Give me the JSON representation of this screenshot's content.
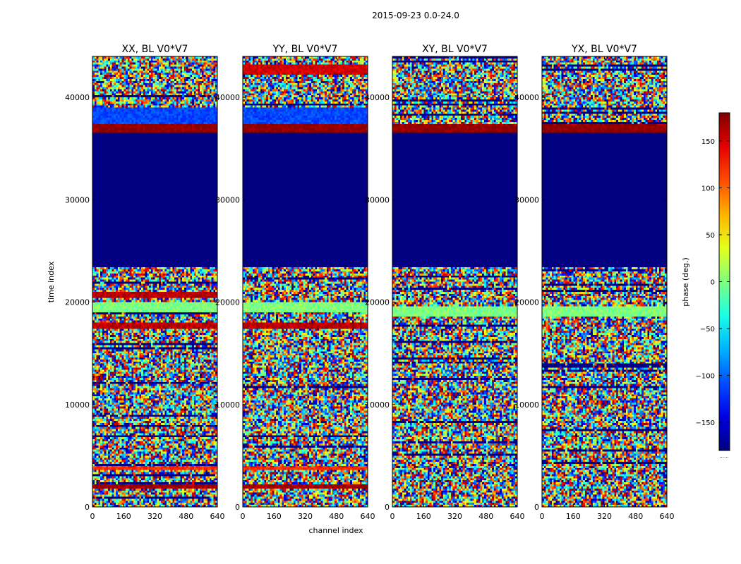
{
  "figure": {
    "suptitle": "2015-09-23 0.0-24.0",
    "colorbar_label": "phase (deg.)",
    "colorbar_footer": "......"
  },
  "chart_data": {
    "type": "heatmap",
    "xlabel": "channel index",
    "ylabel": "time index",
    "xlim": [
      0,
      640
    ],
    "ylim": [
      0,
      44000
    ],
    "xticks": [
      0,
      160,
      320,
      480,
      640
    ],
    "yticks": [
      0,
      10000,
      20000,
      30000,
      40000
    ],
    "colorbar": {
      "range": [
        -180,
        180
      ],
      "ticks": [
        -150,
        -100,
        -50,
        0,
        50,
        100,
        150
      ],
      "colormap": "jet"
    },
    "panels": [
      {
        "title": "XX, BL V0*V7",
        "flagged_block": [
          23500,
          36500
        ],
        "bands": [
          {
            "y": [
              36500,
              37400
            ],
            "phase": 175
          },
          {
            "y": [
              37400,
              39000
            ],
            "phase": -110
          },
          {
            "y": [
              20400,
              21000
            ],
            "phase": 160
          },
          {
            "y": [
              17500,
              17900
            ],
            "phase": 160
          },
          {
            "y": [
              3600,
              3900
            ],
            "phase": 120
          },
          {
            "y": [
              1800,
              2100
            ],
            "phase": 170
          },
          {
            "y": [
              19000,
              19900
            ],
            "phase": 0
          }
        ]
      },
      {
        "title": "YY, BL V0*V7",
        "flagged_block": [
          23500,
          36500
        ],
        "bands": [
          {
            "y": [
              36500,
              37400
            ],
            "phase": 175
          },
          {
            "y": [
              37400,
              39000
            ],
            "phase": -110
          },
          {
            "y": [
              42300,
              43200
            ],
            "phase": 150
          },
          {
            "y": [
              17500,
              17900
            ],
            "phase": 160
          },
          {
            "y": [
              3600,
              3900
            ],
            "phase": 120
          },
          {
            "y": [
              1800,
              2100
            ],
            "phase": 170
          },
          {
            "y": [
              19000,
              19900
            ],
            "phase": 0
          }
        ]
      },
      {
        "title": "XY, BL V0*V7",
        "flagged_block": [
          23500,
          36500
        ],
        "bands": [
          {
            "y": [
              36500,
              37300
            ],
            "phase": 175
          },
          {
            "y": [
              18600,
              19500
            ],
            "phase": 0
          }
        ]
      },
      {
        "title": "YX, BL V0*V7",
        "flagged_block": [
          23500,
          36500
        ],
        "bands": [
          {
            "y": [
              36500,
              37300
            ],
            "phase": 175
          },
          {
            "y": [
              18600,
              19500
            ],
            "phase": 0
          }
        ]
      }
    ]
  }
}
